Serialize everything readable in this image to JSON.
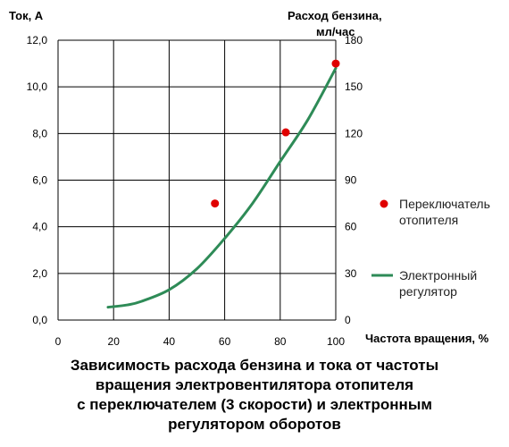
{
  "chart_data": {
    "type": "scatter+line",
    "left_axis": {
      "label": "Ток, А",
      "range": [
        0,
        12
      ],
      "ticks": [
        "0,0",
        "2,0",
        "4,0",
        "6,0",
        "8,0",
        "10,0",
        "12,0"
      ]
    },
    "right_axis": {
      "label_line1": "Расход бензина,",
      "label_line2": "мл/час",
      "range": [
        0,
        180
      ],
      "ticks": [
        "0",
        "30",
        "60",
        "90",
        "120",
        "150",
        "180"
      ]
    },
    "x_axis": {
      "label": "Частота вращения, %",
      "range": [
        0,
        100
      ],
      "ticks": [
        "0",
        "20",
        "40",
        "60",
        "80",
        "100"
      ]
    },
    "grid": true,
    "legend_position": "right",
    "series": [
      {
        "name": "Переключатель отопителя",
        "name_line1": "Переключатель",
        "name_line2": "отопителя",
        "type": "scatter",
        "axis": "left",
        "color": "#e00000",
        "points": [
          {
            "x": 56.5,
            "y": 5.0
          },
          {
            "x": 82,
            "y": 8.05
          },
          {
            "x": 100,
            "y": 11.0
          }
        ]
      },
      {
        "name": "Электронный регулятор",
        "name_line1": "Электронный",
        "name_line2": "регулятор",
        "type": "line",
        "axis": "left",
        "color": "#2e8b57",
        "points": [
          {
            "x": 18,
            "y": 0.55
          },
          {
            "x": 25,
            "y": 0.65
          },
          {
            "x": 30,
            "y": 0.8
          },
          {
            "x": 40,
            "y": 1.3
          },
          {
            "x": 50,
            "y": 2.2
          },
          {
            "x": 60,
            "y": 3.5
          },
          {
            "x": 70,
            "y": 5.0
          },
          {
            "x": 80,
            "y": 6.8
          },
          {
            "x": 90,
            "y": 8.6
          },
          {
            "x": 100,
            "y": 10.8
          }
        ]
      }
    ]
  },
  "caption": {
    "line1": "Зависимость расхода бензина и тока от частоты",
    "line2": "вращения электровентилятора отопителя",
    "line3": "с переключателем (3 скорости) и электронным",
    "line4": "регулятором оборотов"
  }
}
